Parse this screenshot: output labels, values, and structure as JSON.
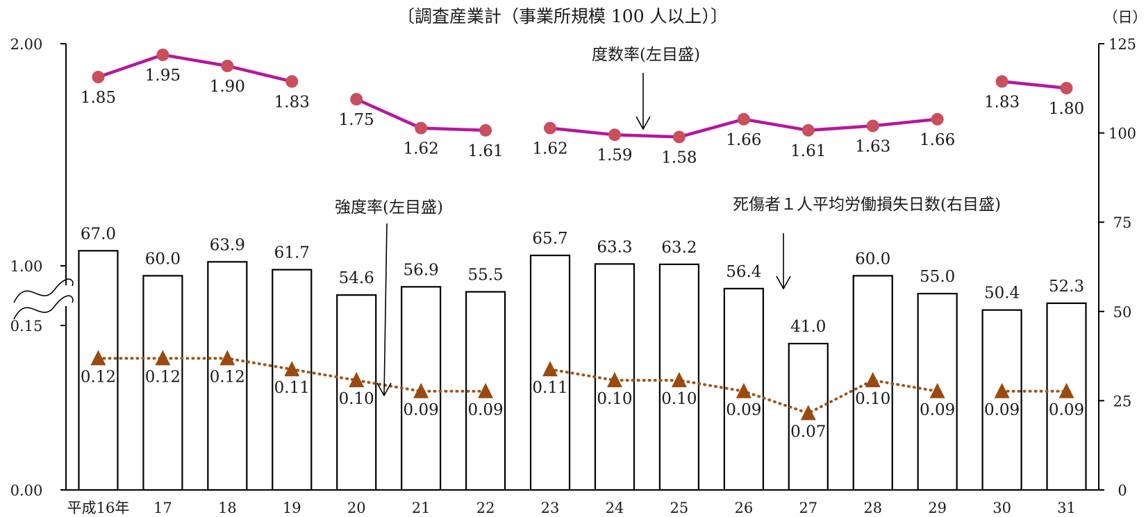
{
  "title": "〔調査産業計（事業所規模 100 人以上）〕",
  "right_unit": "（日）",
  "annotations": {
    "frequency": "度数率(左目盛)",
    "severity": "強度率(左目盛)",
    "days_lost": "死傷者１人平均労働損失日数(右目盛)"
  },
  "colors": {
    "frequency": "#b5179e",
    "frequency_marker": "#c94f5d",
    "severity": "#a0541a",
    "severity_marker": "#9a4a10",
    "bar_stroke": "#000000"
  },
  "chart_data": {
    "type": "bar",
    "categories": [
      "平成16年",
      "17",
      "18",
      "19",
      "20",
      "21",
      "22",
      "23",
      "24",
      "25",
      "26",
      "27",
      "28",
      "29",
      "30",
      "31"
    ],
    "left_axis": {
      "broken": true,
      "upper_ticks": [
        "2.00",
        "1.00"
      ],
      "lower_ticks": [
        "0.15",
        "0.00"
      ],
      "upper_range": [
        1.0,
        2.0
      ],
      "lower_range": [
        0.0,
        0.15
      ]
    },
    "right_axis": {
      "ticks": [
        "125",
        "100",
        "75",
        "50",
        "25",
        "0"
      ],
      "range": [
        0,
        125
      ]
    },
    "series": [
      {
        "key": "frequency",
        "type": "line",
        "axis": "left",
        "values": [
          1.85,
          1.95,
          1.9,
          1.83,
          1.75,
          1.62,
          1.61,
          1.62,
          1.59,
          1.58,
          1.66,
          1.61,
          1.63,
          1.66,
          1.83,
          1.8
        ],
        "labels": [
          "1.85",
          "1.95",
          "1.90",
          "1.83",
          "1.75",
          "1.62",
          "1.61",
          "1.62",
          "1.59",
          "1.58",
          "1.66",
          "1.61",
          "1.63",
          "1.66",
          "1.83",
          "1.80"
        ],
        "segments": [
          [
            0,
            3
          ],
          [
            4,
            6
          ],
          [
            7,
            13
          ],
          [
            14,
            15
          ]
        ]
      },
      {
        "key": "severity",
        "type": "line",
        "axis": "left",
        "values": [
          0.12,
          0.12,
          0.12,
          0.11,
          0.1,
          0.09,
          0.09,
          0.11,
          0.1,
          0.1,
          0.09,
          0.07,
          0.1,
          0.09,
          0.09,
          0.09
        ],
        "labels": [
          "0.12",
          "0.12",
          "0.12",
          "0.11",
          "0.10",
          "0.09",
          "0.09",
          "0.11",
          "0.10",
          "0.10",
          "0.09",
          "0.07",
          "0.10",
          "0.09",
          "0.09",
          "0.09"
        ],
        "segments": [
          [
            0,
            6
          ],
          [
            7,
            13
          ],
          [
            14,
            15
          ]
        ]
      },
      {
        "key": "days_lost",
        "type": "bar",
        "axis": "right",
        "values": [
          67.0,
          60.0,
          63.9,
          61.7,
          54.6,
          56.9,
          55.5,
          65.7,
          63.3,
          63.2,
          56.4,
          41.0,
          60.0,
          55.0,
          50.4,
          52.3
        ],
        "labels": [
          "67.0",
          "60.0",
          "63.9",
          "61.7",
          "54.6",
          "56.9",
          "55.5",
          "65.7",
          "63.3",
          "63.2",
          "56.4",
          "41.0",
          "60.0",
          "55.0",
          "50.4",
          "52.3"
        ]
      }
    ]
  }
}
